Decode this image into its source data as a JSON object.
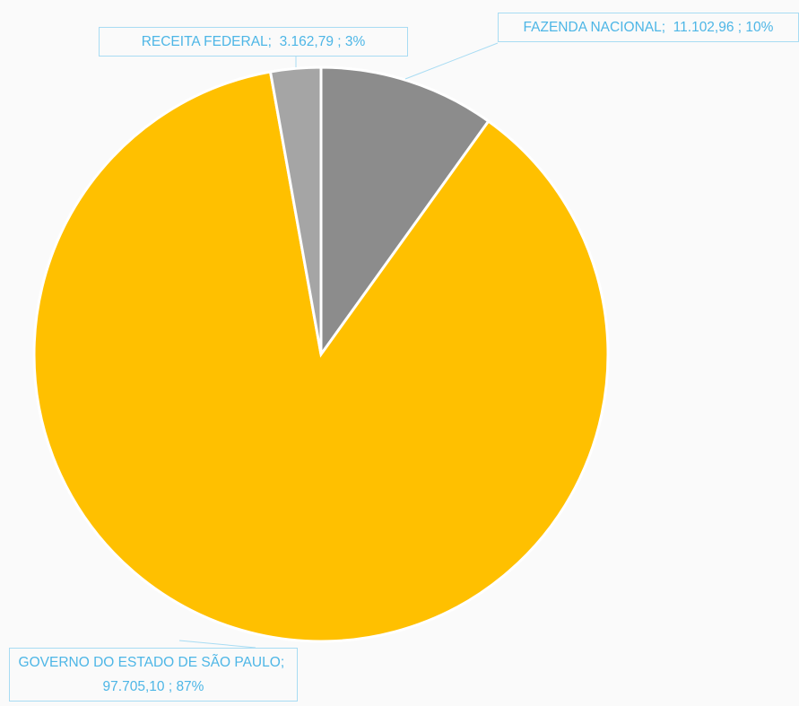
{
  "chart_data": {
    "type": "pie",
    "categories": [
      "FAZENDA NACIONAL",
      "GOVERNO DO ESTADO DE SÃO PAULO",
      "RECEITA FEDERAL"
    ],
    "values": [
      11102.96,
      97705.1,
      3162.79
    ],
    "value_labels": [
      "11.102,96",
      "97.705,10",
      "3.162,79"
    ],
    "percents": [
      10,
      87,
      3
    ],
    "percent_labels": [
      "10%",
      "87%",
      "3%"
    ],
    "label_separator": ";",
    "colors": [
      "#8c8c8c",
      "#ffc000",
      "#a5a5a5"
    ]
  }
}
